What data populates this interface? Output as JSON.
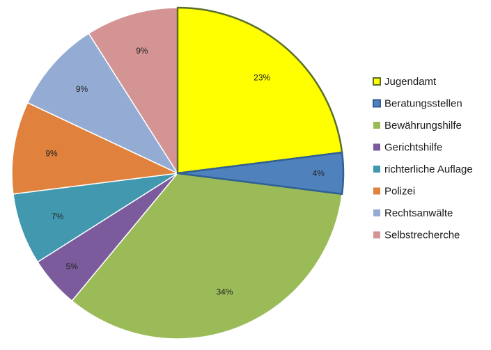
{
  "chart_data": {
    "type": "pie",
    "title": "",
    "start_angle_deg": 0,
    "direction": "clockwise",
    "legend_position": "right",
    "slices": [
      {
        "name": "Jugendamt",
        "value": 23,
        "label": "23%",
        "color": "#FFFF00",
        "stroke": "#5A6E2A"
      },
      {
        "name": "Beratungsstellen",
        "value": 4,
        "label": "4%",
        "color": "#4F81BD",
        "stroke": "#2F5F93"
      },
      {
        "name": "Bewährungshilfe",
        "value": 34,
        "label": "34%",
        "color": "#9BBB59",
        "stroke": "#ffffff"
      },
      {
        "name": "Gerichtshilfe",
        "value": 5,
        "label": "5%",
        "color": "#7B5B9C",
        "stroke": "#ffffff"
      },
      {
        "name": "richterliche Auflage",
        "value": 7,
        "label": "7%",
        "color": "#4198AF",
        "stroke": "#ffffff"
      },
      {
        "name": "Polizei",
        "value": 9,
        "label": "9%",
        "color": "#E0823D",
        "stroke": "#ffffff"
      },
      {
        "name": "Rechtsanwälte",
        "value": 9,
        "label": "9%",
        "color": "#94ACD4",
        "stroke": "#ffffff"
      },
      {
        "name": "Selbstrecherche",
        "value": 9,
        "label": "9%",
        "color": "#D59494",
        "stroke": "#ffffff"
      }
    ]
  }
}
